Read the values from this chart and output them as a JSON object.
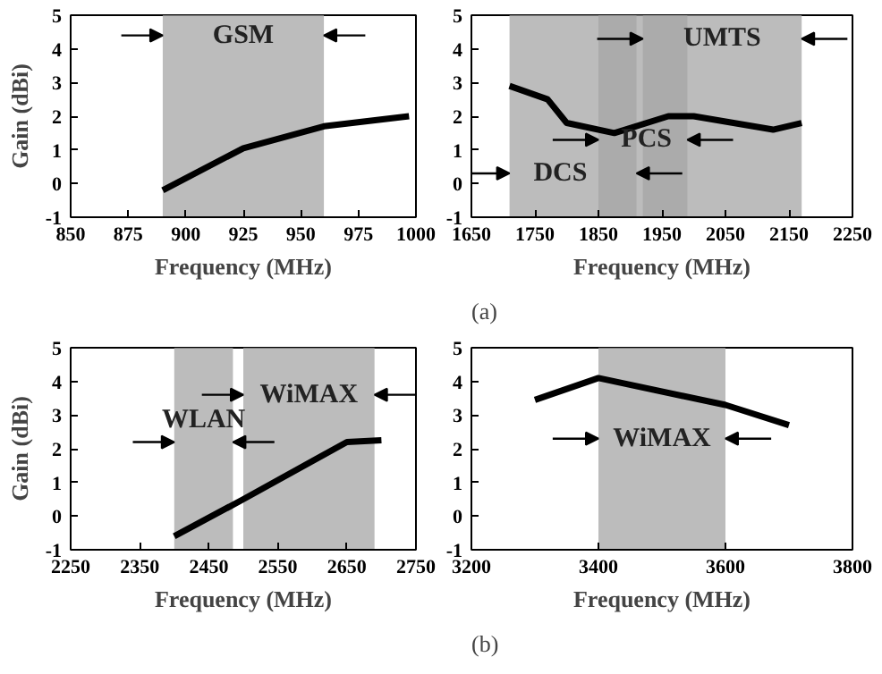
{
  "chart_data": [
    {
      "type": "line",
      "xlabel": "Frequency (MHz)",
      "ylabel": "Gain (dBi)",
      "x": [
        890,
        925,
        960,
        997
      ],
      "series": [
        {
          "color": "#000000",
          "values": [
            -0.2,
            1.05,
            1.7,
            2.0
          ]
        }
      ],
      "xlim": [
        850,
        1000
      ],
      "xticks": [
        850,
        875,
        900,
        925,
        950,
        975,
        1000
      ],
      "ylim": [
        -1,
        5
      ],
      "yticks": [
        -1,
        0,
        1,
        2,
        3,
        4,
        5
      ],
      "bands": [
        {
          "axis": "x",
          "from": 890,
          "to": 960,
          "color": "#a6a6a6",
          "label": "GSM"
        }
      ]
    },
    {
      "type": "line",
      "xlabel": "Frequency (MHz)",
      "x": [
        1710,
        1770,
        1800,
        1875,
        1960,
        2000,
        2125,
        2170
      ],
      "series": [
        {
          "color": "#000000",
          "values": [
            2.9,
            2.5,
            1.8,
            1.5,
            2.0,
            2.0,
            1.6,
            1.8
          ]
        }
      ],
      "xlim": [
        1650,
        2250
      ],
      "xticks": [
        1650,
        1750,
        1850,
        1950,
        2050,
        2150,
        2250
      ],
      "ylim": [
        -1,
        5
      ],
      "yticks": [
        -1,
        0,
        1,
        2,
        3,
        4,
        5
      ],
      "bands": [
        {
          "axis": "x",
          "from": 1710,
          "to": 1910,
          "color": "#a6a6a6",
          "label": "DCS"
        },
        {
          "axis": "x",
          "from": 1850,
          "to": 1990,
          "color": "#a6a6a6",
          "label": "PCS"
        },
        {
          "axis": "x",
          "from": 1920,
          "to": 2170,
          "color": "#a6a6a6",
          "label": "UMTS"
        }
      ],
      "annotations": [
        "(a)"
      ]
    },
    {
      "type": "line",
      "xlabel": "Frequency (MHz)",
      "ylabel": "Gain (dBi)",
      "x": [
        2400,
        2500,
        2650,
        2700
      ],
      "series": [
        {
          "color": "#000000",
          "values": [
            -0.6,
            0.5,
            2.2,
            2.25
          ]
        }
      ],
      "xlim": [
        2250,
        2750
      ],
      "xticks": [
        2250,
        2350,
        2450,
        2550,
        2650,
        2750
      ],
      "ylim": [
        -1,
        5
      ],
      "yticks": [
        -1,
        0,
        1,
        2,
        3,
        4,
        5
      ],
      "bands": [
        {
          "axis": "x",
          "from": 2400,
          "to": 2485,
          "color": "#a6a6a6",
          "label": "WLAN"
        },
        {
          "axis": "x",
          "from": 2500,
          "to": 2690,
          "color": "#a6a6a6",
          "label": "WiMAX"
        }
      ]
    },
    {
      "type": "line",
      "xlabel": "Frequency (MHz)",
      "x": [
        3300,
        3400,
        3600,
        3700
      ],
      "series": [
        {
          "color": "#000000",
          "values": [
            3.45,
            4.1,
            3.3,
            2.7
          ]
        }
      ],
      "xlim": [
        3200,
        3800
      ],
      "xticks": [
        3200,
        3400,
        3600,
        3800
      ],
      "ylim": [
        -1,
        5
      ],
      "yticks": [
        -1,
        0,
        1,
        2,
        3,
        4,
        5
      ],
      "bands": [
        {
          "axis": "x",
          "from": 3400,
          "to": 3600,
          "color": "#a6a6a6",
          "label": "WiMAX"
        }
      ],
      "annotations": [
        "(b)"
      ]
    }
  ]
}
